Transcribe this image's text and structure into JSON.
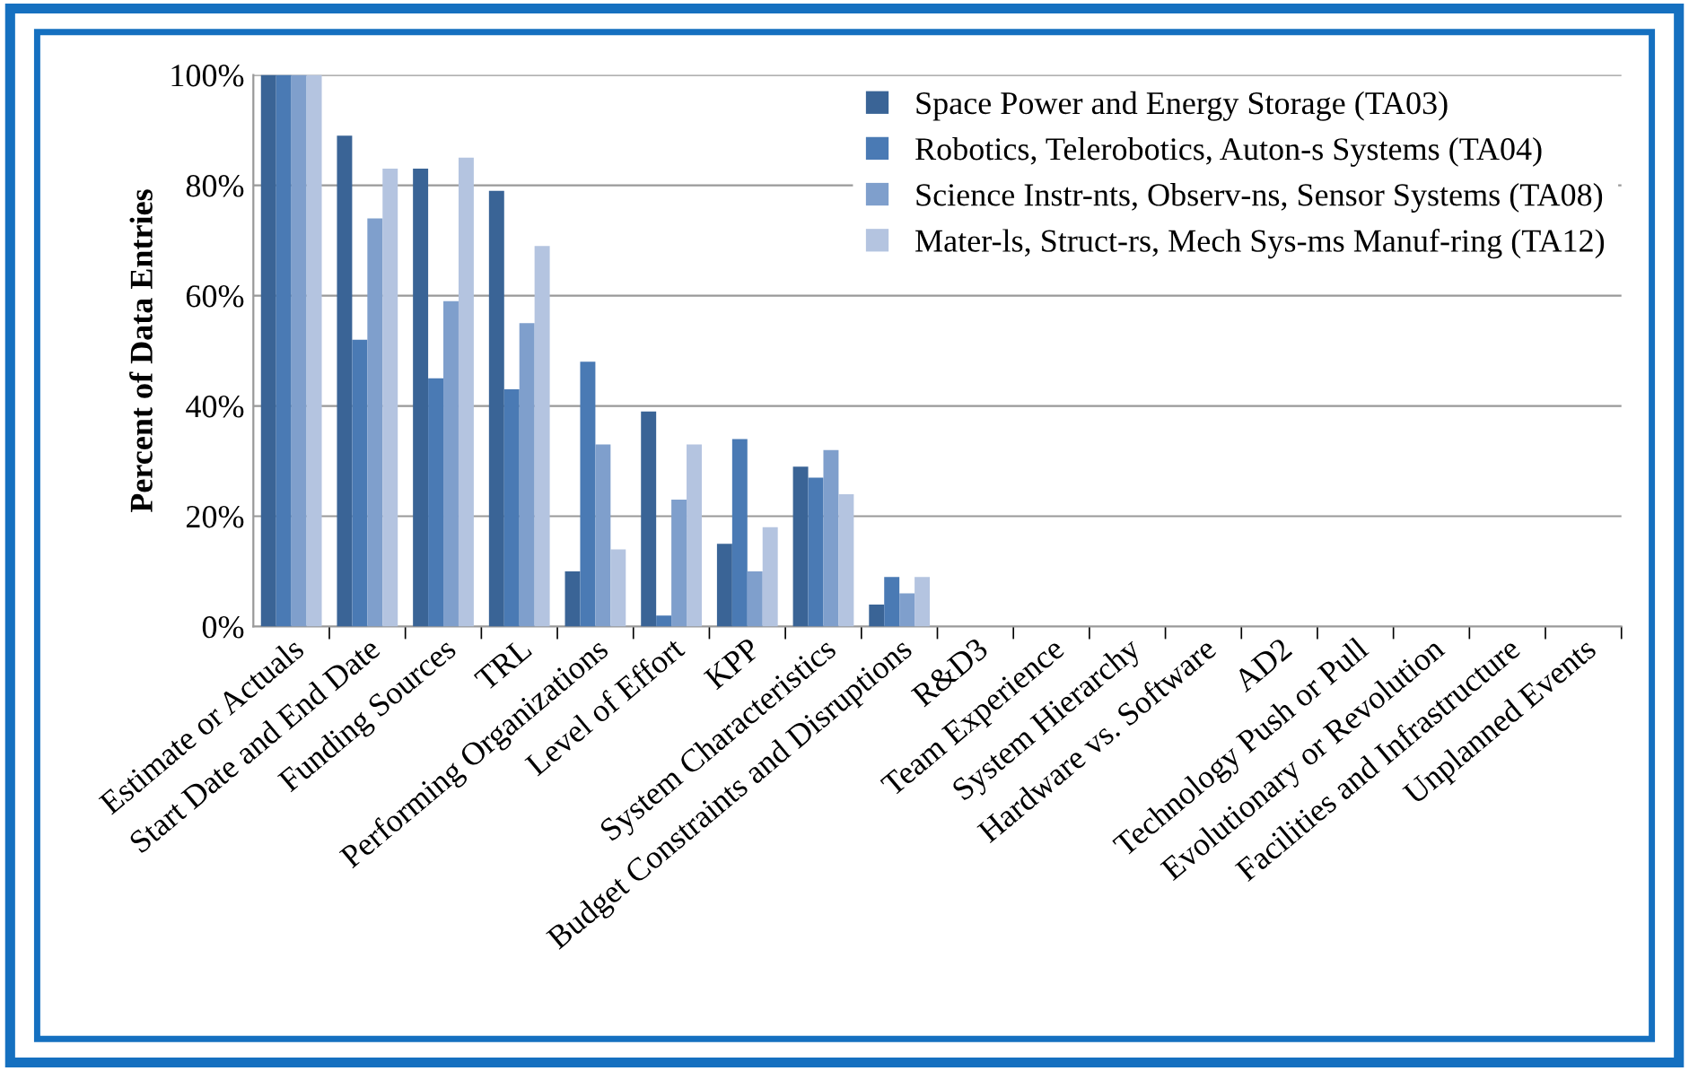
{
  "chart_data": {
    "type": "bar",
    "ylabel": "Percent of Data Entries",
    "categories": [
      "Estimate or Actuals",
      "Start Date and End Date",
      "Funding Sources",
      "TRL",
      "Performing Organizations",
      "Level of Effort",
      "KPP",
      "System Characteristics",
      "Budget Constraints and Disruptions",
      "R&D3",
      "Team Experience",
      "System Hierarchy",
      "Hardware vs. Software",
      "AD2",
      "Technology Push or Pull",
      "Evolutionary or Revolution",
      "Facilities and Infrastructure",
      "Unplanned Events"
    ],
    "series": [
      {
        "name": "Space Power and Energy Storage (TA03)",
        "color": "#3a6496",
        "values": [
          100,
          89,
          83,
          79,
          10,
          39,
          15,
          29,
          4,
          0,
          0,
          0,
          0,
          0,
          0,
          0,
          0,
          0
        ]
      },
      {
        "name": "Robotics, Telerobotics, Auton-s Systems (TA04)",
        "color": "#4a7ab4",
        "values": [
          100,
          52,
          45,
          43,
          48,
          2,
          34,
          27,
          9,
          0,
          0,
          0,
          0,
          0,
          0,
          0,
          0,
          0
        ]
      },
      {
        "name": "Science Instr-nts, Observ-ns, Sensor Systems (TA08)",
        "color": "#7f9fcc",
        "values": [
          100,
          74,
          59,
          55,
          33,
          23,
          10,
          32,
          6,
          0,
          0,
          0,
          0,
          0,
          0,
          0,
          0,
          0
        ]
      },
      {
        "name": "Mater-ls, Struct-rs, Mech Sys-ms Manuf-ring (TA12)",
        "color": "#b4c4e0",
        "values": [
          100,
          83,
          85,
          69,
          14,
          33,
          18,
          24,
          9,
          0,
          0,
          0,
          0,
          0,
          0,
          0,
          0,
          0
        ]
      }
    ],
    "ylim": [
      0,
      100
    ],
    "yticks": [
      {
        "value": 0,
        "label": "0%"
      },
      {
        "value": 20,
        "label": "20%"
      },
      {
        "value": 40,
        "label": "40%"
      },
      {
        "value": 60,
        "label": "60%"
      },
      {
        "value": 80,
        "label": "80%"
      },
      {
        "value": 100,
        "label": "100%"
      }
    ],
    "grid": "y",
    "legend": "top right"
  }
}
